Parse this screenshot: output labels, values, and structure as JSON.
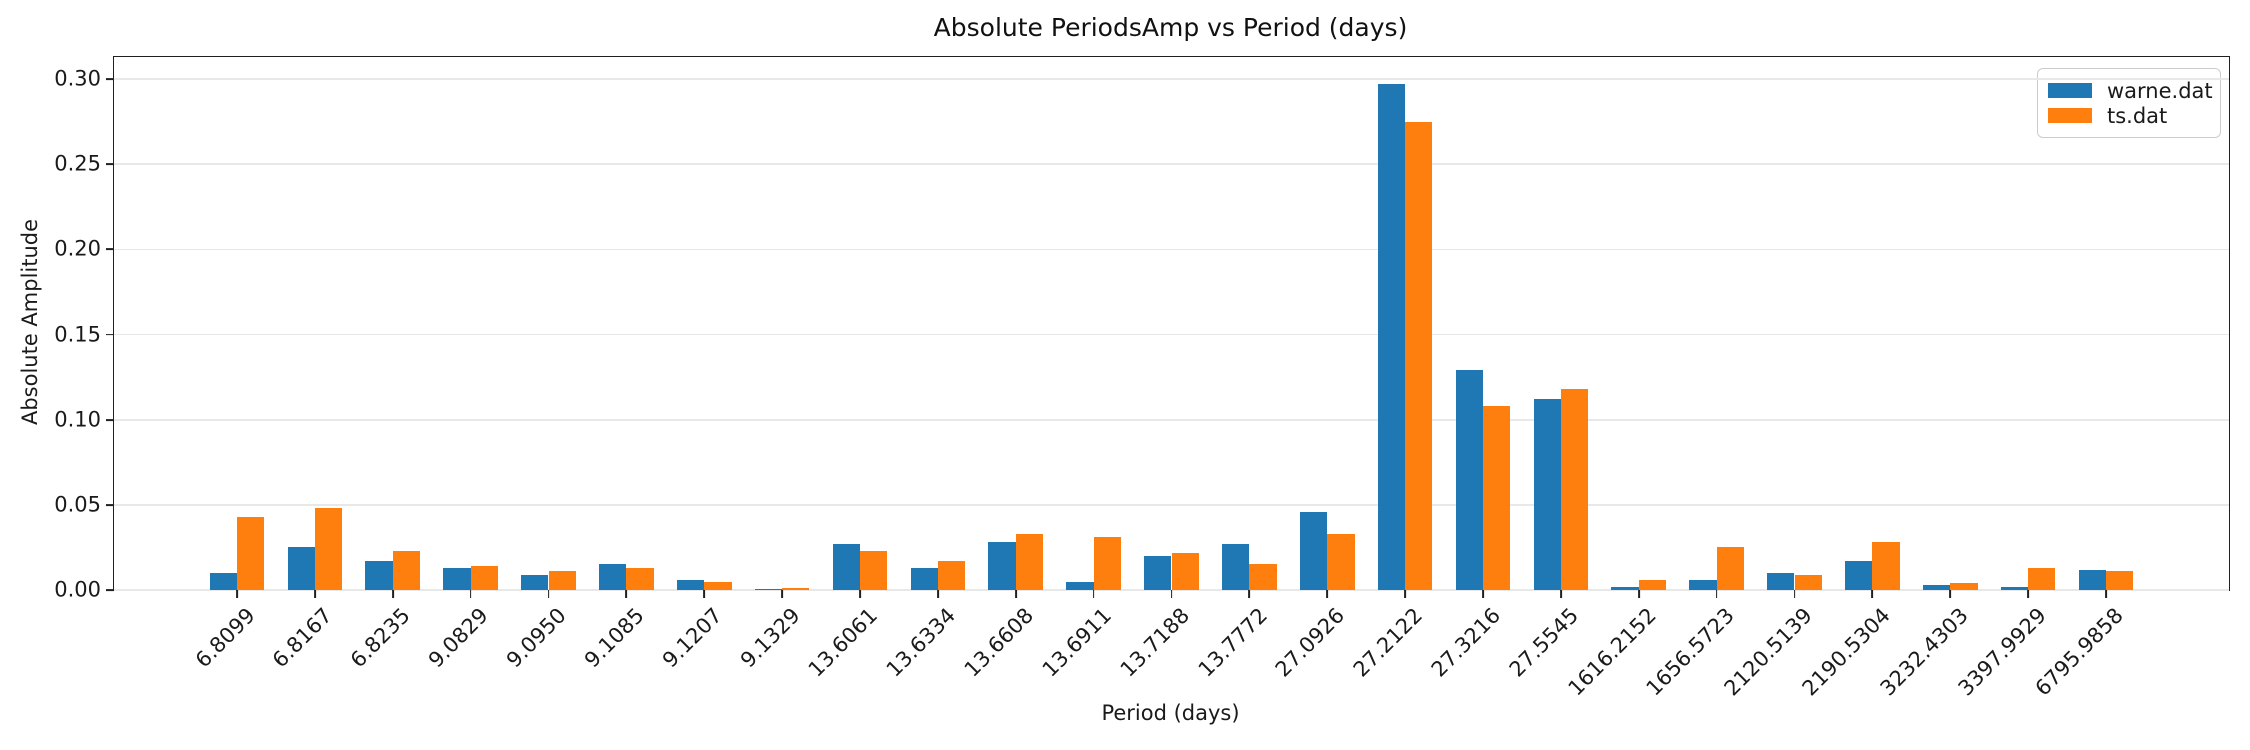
{
  "chart_data": {
    "type": "bar",
    "title": "Absolute PeriodsAmp vs Period (days)",
    "xlabel": "Period (days)",
    "ylabel": "Absolute Amplitude",
    "categories": [
      "6.8099",
      "6.8167",
      "6.8235",
      "9.0829",
      "9.0950",
      "9.1085",
      "9.1207",
      "9.1329",
      "13.6061",
      "13.6334",
      "13.6608",
      "13.6911",
      "13.7188",
      "13.7772",
      "27.0926",
      "27.2122",
      "27.3216",
      "27.5545",
      "1616.2152",
      "1656.5723",
      "2120.5139",
      "2190.5304",
      "3232.4303",
      "3397.9929",
      "6795.9858"
    ],
    "series": [
      {
        "name": "warne.dat",
        "color": "#1f77b4",
        "values": [
          0.01,
          0.025,
          0.017,
          0.013,
          0.009,
          0.015,
          0.006,
          0.0005,
          0.027,
          0.013,
          0.028,
          0.005,
          0.02,
          0.027,
          0.046,
          0.297,
          0.129,
          0.112,
          0.002,
          0.006,
          0.01,
          0.017,
          0.003,
          0.002,
          0.012
        ]
      },
      {
        "name": "ts.dat",
        "color": "#ff7f0e",
        "values": [
          0.043,
          0.048,
          0.023,
          0.014,
          0.011,
          0.013,
          0.005,
          0.0013,
          0.023,
          0.017,
          0.033,
          0.031,
          0.022,
          0.015,
          0.033,
          0.275,
          0.108,
          0.118,
          0.006,
          0.025,
          0.009,
          0.028,
          0.004,
          0.013,
          0.011
        ]
      }
    ],
    "ylim": [
      0,
      0.313
    ],
    "yticks": [
      {
        "value": 0.0,
        "label": "0.00"
      },
      {
        "value": 0.05,
        "label": "0.05"
      },
      {
        "value": 0.1,
        "label": "0.10"
      },
      {
        "value": 0.15,
        "label": "0.15"
      },
      {
        "value": 0.2,
        "label": "0.20"
      },
      {
        "value": 0.25,
        "label": "0.25"
      },
      {
        "value": 0.3,
        "label": "0.30"
      }
    ],
    "grid": true,
    "legend_position": "upper right"
  }
}
